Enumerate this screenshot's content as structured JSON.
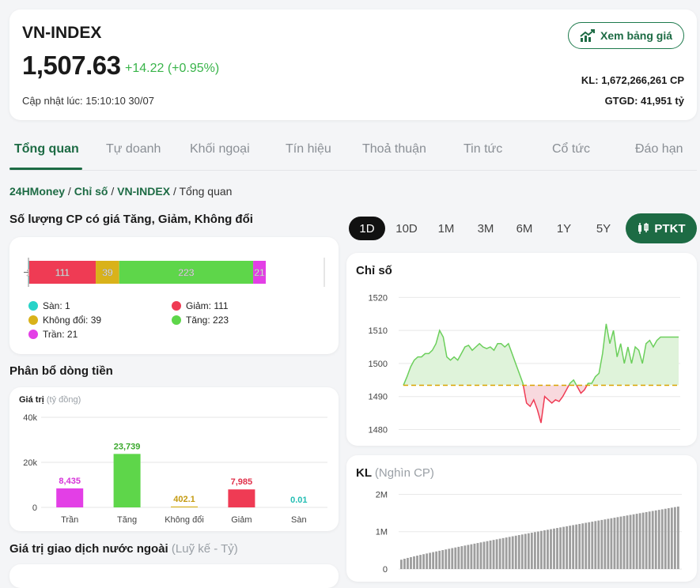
{
  "header": {
    "index_name": "VN-INDEX",
    "price": "1,507.63",
    "change": "+14.22 (+0.95%)",
    "updated": "Cập nhật lúc: 15:10:10 30/07",
    "board_button": "Xem bảng giá",
    "volume": "KL: 1,672,266,261 CP",
    "value": "GTGD: 41,951 tỷ"
  },
  "tabs": [
    "Tổng quan",
    "Tự doanh",
    "Khối ngoại",
    "Tín hiệu",
    "Thoả thuận",
    "Tin tức",
    "Cổ tức",
    "Đáo hạn"
  ],
  "breadcrumb": {
    "items": [
      "24HMoney",
      "Chỉ số",
      "VN-INDEX"
    ],
    "separator": " / ",
    "current": "Tổng quan"
  },
  "stock_counts": {
    "title": "Số lượng CP có giá Tăng, Giảm, Không đổi",
    "segments": [
      {
        "key": "san",
        "value": 1,
        "color": "#28d3c8"
      },
      {
        "key": "giam",
        "value": 111,
        "color": "#ef3b54"
      },
      {
        "key": "khong_doi",
        "value": 39,
        "color": "#d9b21a"
      },
      {
        "key": "tang",
        "value": 223,
        "color": "#5ed64a"
      },
      {
        "key": "tran",
        "value": 21,
        "color": "#e33fe6"
      }
    ],
    "bar_labels": [
      "1",
      "111",
      "39",
      "223",
      "21"
    ],
    "legend": {
      "san": "Sàn: 1",
      "giam": "Giảm: 111",
      "khong_doi": "Không đổi: 39",
      "tang": "Tăng: 223",
      "tran": "Trần: 21"
    }
  },
  "money_flow": {
    "title": "Phân bổ dòng tiền",
    "axis_label": "Giá trị",
    "axis_unit": "(tỷ đồng)",
    "chart_data": {
      "type": "bar",
      "categories": [
        "Trần",
        "Tăng",
        "Không đổi",
        "Giảm",
        "Sàn"
      ],
      "values": [
        8435,
        23739,
        402.1,
        7985,
        0.01
      ],
      "value_labels": [
        "8,435",
        "23,739",
        "402.1",
        "7,985",
        "0.01"
      ],
      "colors": [
        "#e33fe6",
        "#5ed64a",
        "#d9b21a",
        "#ef3b54",
        "#28d3c8"
      ],
      "label_colors": [
        "#d633d9",
        "#3aa82c",
        "#c49a10",
        "#e0304a",
        "#22bdb3"
      ],
      "yticks": [
        "40k",
        "20k",
        "0"
      ],
      "ytick_values": [
        40000,
        20000,
        0
      ],
      "ylim": [
        0,
        40000
      ]
    }
  },
  "periods": {
    "items": [
      "1D",
      "10D",
      "1M",
      "3M",
      "6M",
      "1Y",
      "5Y"
    ],
    "active": "1D",
    "ptkt_label": "PTKT"
  },
  "index_chart": {
    "title": "Chỉ số",
    "chart_data": {
      "type": "line",
      "yticks": [
        "1520",
        "1510",
        "1500",
        "1490",
        "1480"
      ],
      "ylim": [
        1477,
        1522
      ],
      "reference": 1493.41,
      "points": [
        1493.4,
        1496,
        1499,
        1501,
        1502,
        1502,
        1503,
        1503,
        1504,
        1506,
        1510,
        1508,
        1502,
        1501,
        1502,
        1501,
        1503,
        1505,
        1505.5,
        1504,
        1505,
        1506,
        1505,
        1504.5,
        1505,
        1504,
        1506,
        1506,
        1505,
        1506,
        1503,
        1500,
        1497,
        1494,
        1488,
        1487,
        1489,
        1486,
        1482,
        1490,
        1489,
        1488,
        1489,
        1488.5,
        1490,
        1492,
        1494,
        1495,
        1493,
        1491,
        1492,
        1494,
        1494,
        1496,
        1497,
        1503,
        1512,
        1506,
        1510,
        1502,
        1506,
        1500,
        1505,
        1500,
        1505,
        1504,
        1500,
        1506,
        1507,
        1505,
        1507,
        1508,
        1508,
        1508,
        1508,
        1508,
        1508
      ]
    }
  },
  "volume_chart": {
    "title": "KL",
    "unit": "(Nghìn CP)",
    "chart_data": {
      "type": "bar",
      "yticks": [
        "2M",
        "1M",
        "0"
      ],
      "ytick_values": [
        2000000,
        1000000,
        0
      ],
      "ylim": [
        0,
        2200000
      ],
      "start": 250000,
      "end": 1672266
    }
  },
  "foreign": {
    "title": "Giá trị giao dịch nước ngoài",
    "unit": "(Luỹ kế - Tỷ)"
  },
  "colors": {
    "brand": "#1d6b44",
    "up": "#39b44a",
    "down": "#ef3b54",
    "reference": "#d9a300"
  }
}
